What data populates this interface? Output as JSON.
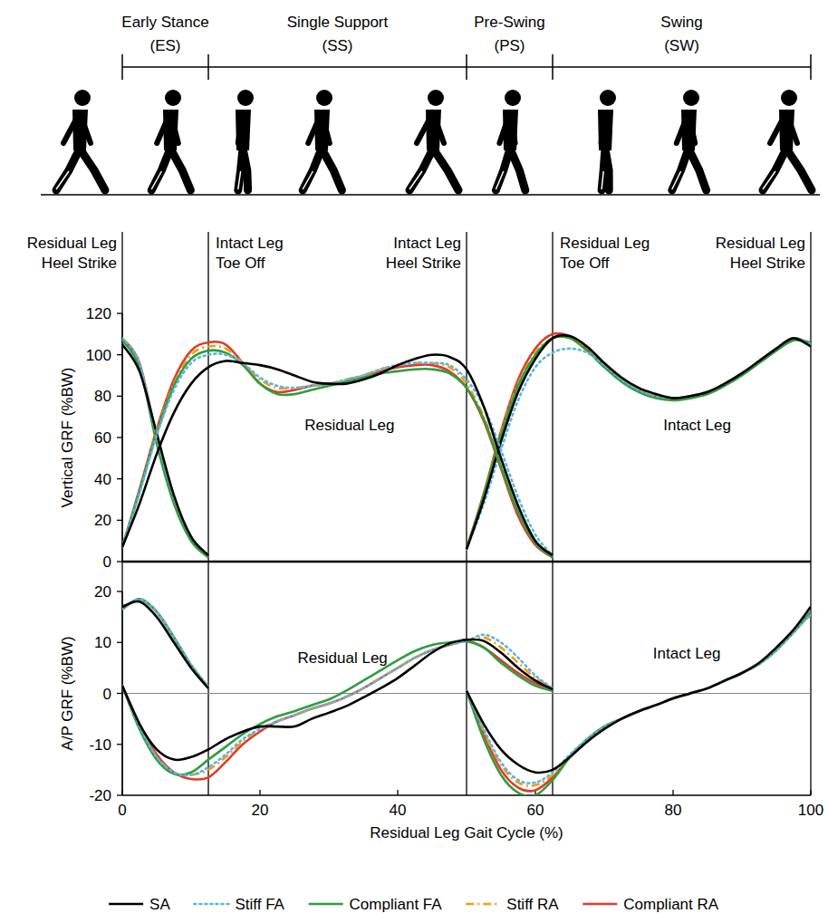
{
  "phases": [
    {
      "label": "Early Stance (ES)",
      "start": 0,
      "end": 12.5
    },
    {
      "label": "Single Support (SS)",
      "start": 12.5,
      "end": 50
    },
    {
      "label": "Pre-Swing (PS)",
      "start": 50,
      "end": 62.5
    },
    {
      "label": "Swing (SW)",
      "start": 62.5,
      "end": 100
    }
  ],
  "events": [
    {
      "x": 0,
      "label": "Residual Leg Heel Strike"
    },
    {
      "x": 12.5,
      "label": "Intact Leg Toe Off"
    },
    {
      "x": 50,
      "label": "Intact Leg Heel Strike"
    },
    {
      "x": 62.5,
      "label": "Residual Leg Toe Off"
    },
    {
      "x": 100,
      "label": "Residual Leg Heel Strike"
    }
  ],
  "chart_data": [
    {
      "type": "line",
      "y_label": "Vertical GRF (%BW)",
      "tick_labels": "y",
      "x": [
        0,
        2.5,
        5,
        7.5,
        10,
        12.5,
        15,
        17.5,
        20,
        22.5,
        25,
        27.5,
        30,
        32.5,
        35,
        37.5,
        40,
        42.5,
        45,
        47.5,
        50,
        52.5,
        55,
        57.5,
        60,
        62.5,
        65,
        67.5,
        70,
        72.5,
        75,
        77.5,
        80,
        82.5,
        85,
        87.5,
        90,
        92.5,
        95,
        97.5,
        100
      ],
      "xlim": [
        0,
        100
      ],
      "ylim": [
        0,
        120
      ],
      "yticks": [
        0,
        20,
        40,
        60,
        80,
        100,
        120
      ],
      "annotations": [
        {
          "text": "Residual Leg",
          "x": 33,
          "y": 66
        },
        {
          "text": "Intact Leg",
          "x": 83.5,
          "y": 66
        }
      ],
      "series": [
        {
          "name": "SA",
          "color": "#000000",
          "line_style": "solid",
          "values": [
            7,
            28,
            52,
            72,
            86,
            94,
            97,
            96,
            95,
            93,
            90,
            87,
            86,
            86,
            88,
            91,
            95,
            98,
            100,
            99,
            93,
            75,
            50,
            27,
            10,
            3,
            null,
            null,
            null,
            null,
            null,
            null,
            null,
            null,
            null,
            null,
            null,
            null,
            null,
            null,
            null
          ]
        },
        {
          "name": "Stiff FA",
          "color": "#5ab4e5",
          "line_style": "dotted",
          "values": [
            7,
            33,
            61,
            83,
            96,
            100,
            100,
            96,
            89,
            85,
            84,
            85,
            86,
            88,
            90,
            93,
            95,
            96,
            96,
            95,
            88,
            75,
            54,
            31,
            13,
            3,
            null,
            null,
            null,
            null,
            null,
            null,
            null,
            null,
            null,
            null,
            null,
            null,
            null,
            null,
            null
          ]
        },
        {
          "name": "Compliant FA",
          "color": "#2e9e3e",
          "line_style": "solid",
          "values": [
            7,
            34,
            62,
            85,
            98,
            102,
            101,
            95,
            86,
            81,
            81,
            83,
            85,
            87,
            89,
            91,
            92,
            93,
            93,
            91,
            84,
            69,
            46,
            24,
            9,
            2,
            null,
            null,
            null,
            null,
            null,
            null,
            null,
            null,
            null,
            null,
            null,
            null,
            null,
            null,
            null
          ]
        },
        {
          "name": "Stiff RA",
          "color": "#f39c12",
          "line_style": "dashdot",
          "values": [
            7,
            34,
            63,
            86,
            100,
            104,
            103,
            96,
            88,
            84,
            84,
            85,
            86,
            88,
            90,
            93,
            95,
            96,
            96,
            94,
            86,
            70,
            47,
            24,
            9,
            2,
            null,
            null,
            null,
            null,
            null,
            null,
            null,
            null,
            null,
            null,
            null,
            null,
            null,
            null,
            null
          ]
        },
        {
          "name": "Compliant RA",
          "color": "#e03a2f",
          "line_style": "solid",
          "values": [
            7,
            35,
            64,
            88,
            102,
            106,
            105,
            96,
            86,
            82,
            83,
            85,
            86,
            87,
            89,
            92,
            94,
            95,
            95,
            92,
            84,
            68,
            45,
            22,
            8,
            2,
            null,
            null,
            null,
            null,
            null,
            null,
            null,
            null,
            null,
            null,
            null,
            null,
            null,
            null,
            null
          ]
        },
        {
          "name": "SA",
          "color": "#000000",
          "line_style": "solid",
          "values": [
            105,
            92,
            62,
            32,
            12,
            3,
            null,
            null,
            null,
            null,
            null,
            null,
            null,
            null,
            null,
            null,
            null,
            null,
            null,
            null,
            6,
            30,
            58,
            82,
            98,
            108,
            109,
            104,
            96,
            89,
            84,
            81,
            79,
            80,
            82,
            86,
            91,
            97,
            103,
            108,
            104
          ]
        },
        {
          "name": "Stiff FA",
          "color": "#5ab4e5",
          "line_style": "dotted",
          "values": [
            108,
            96,
            60,
            31,
            12,
            3,
            null,
            null,
            null,
            null,
            null,
            null,
            null,
            null,
            null,
            null,
            null,
            null,
            null,
            null,
            6,
            28,
            54,
            78,
            94,
            101,
            103,
            101,
            95,
            88,
            83,
            80,
            79,
            80,
            82,
            86,
            91,
            97,
            103,
            108,
            105
          ]
        },
        {
          "name": "Compliant FA",
          "color": "#2e9e3e",
          "line_style": "solid",
          "values": [
            107,
            94,
            57,
            28,
            10,
            2,
            null,
            null,
            null,
            null,
            null,
            null,
            null,
            null,
            null,
            null,
            null,
            null,
            null,
            null,
            6,
            32,
            61,
            85,
            100,
            108,
            108,
            102,
            94,
            87,
            82,
            79,
            78,
            79,
            81,
            85,
            90,
            96,
            102,
            107,
            106
          ]
        },
        {
          "name": "Stiff RA",
          "color": "#f39c12",
          "line_style": "dashdot",
          "values": [
            108,
            95,
            59,
            30,
            12,
            3,
            null,
            null,
            null,
            null,
            null,
            null,
            null,
            null,
            null,
            null,
            null,
            null,
            null,
            null,
            6,
            32,
            62,
            86,
            101,
            108,
            109,
            103,
            95,
            88,
            83,
            80,
            79,
            80,
            82,
            86,
            91,
            97,
            103,
            108,
            105
          ]
        },
        {
          "name": "Compliant RA",
          "color": "#e03a2f",
          "line_style": "solid",
          "values": [
            108,
            96,
            60,
            30,
            11,
            3,
            null,
            null,
            null,
            null,
            null,
            null,
            null,
            null,
            null,
            null,
            null,
            null,
            null,
            null,
            6,
            33,
            63,
            88,
            103,
            110,
            109,
            103,
            95,
            88,
            83,
            80,
            79,
            80,
            82,
            86,
            91,
            97,
            103,
            108,
            105
          ]
        }
      ]
    },
    {
      "type": "line",
      "y_label": "A/P GRF (%BW)",
      "x_label": "Residual Leg Gait Cycle (%)",
      "legend": "bottom",
      "x": [
        0,
        2.5,
        5,
        7.5,
        10,
        12.5,
        15,
        17.5,
        20,
        22.5,
        25,
        27.5,
        30,
        32.5,
        35,
        37.5,
        40,
        42.5,
        45,
        47.5,
        50,
        52.5,
        55,
        57.5,
        60,
        62.5,
        65,
        67.5,
        70,
        72.5,
        75,
        77.5,
        80,
        82.5,
        85,
        87.5,
        90,
        92.5,
        95,
        97.5,
        100
      ],
      "xlim": [
        0,
        100
      ],
      "ylim": [
        -20,
        20
      ],
      "xticks": [
        0,
        20,
        40,
        60,
        80,
        100
      ],
      "yticks": [
        -20,
        -10,
        0,
        10,
        20
      ],
      "annotations": [
        {
          "text": "Residual Leg",
          "x": 32,
          "y": 7
        },
        {
          "text": "Intact Leg",
          "x": 82,
          "y": 8
        }
      ],
      "series": [
        {
          "name": "SA",
          "color": "#000000",
          "line_style": "solid",
          "values": [
            1.5,
            -6,
            -11,
            -13,
            -12.5,
            -11,
            -9,
            -7.5,
            -6.5,
            -6.5,
            -6.5,
            -5,
            -3.8,
            -2.5,
            -0.8,
            1,
            3,
            5.5,
            8,
            9.8,
            10.5,
            10.3,
            8,
            5,
            2.5,
            0.8,
            null,
            null,
            null,
            null,
            null,
            null,
            null,
            null,
            null,
            null,
            null,
            null,
            null,
            null,
            null
          ]
        },
        {
          "name": "Stiff FA",
          "color": "#5ab4e5",
          "line_style": "dotted",
          "values": [
            1.5,
            -6.5,
            -12.5,
            -15.5,
            -16,
            -14.5,
            -12,
            -9,
            -7,
            -5.5,
            -4.3,
            -3,
            -2,
            -0.7,
            1,
            3,
            5,
            7,
            8.5,
            9.5,
            10.3,
            11.5,
            10,
            7,
            3.5,
            1,
            null,
            null,
            null,
            null,
            null,
            null,
            null,
            null,
            null,
            null,
            null,
            null,
            null,
            null,
            null
          ]
        },
        {
          "name": "Compliant FA",
          "color": "#2e9e3e",
          "line_style": "solid",
          "values": [
            1.5,
            -7,
            -13,
            -15.8,
            -15.5,
            -13,
            -10.5,
            -8,
            -6,
            -4.5,
            -3.5,
            -2.3,
            -1.2,
            0.5,
            2.5,
            4.5,
            6.5,
            8.3,
            9.5,
            10,
            10.2,
            9,
            6,
            3.5,
            1.5,
            0.5,
            null,
            null,
            null,
            null,
            null,
            null,
            null,
            null,
            null,
            null,
            null,
            null,
            null,
            null,
            null
          ]
        },
        {
          "name": "Stiff RA",
          "color": "#f39c12",
          "line_style": "dashdot",
          "values": [
            1.5,
            -6.5,
            -12.5,
            -15.5,
            -16,
            -15,
            -12.5,
            -9.5,
            -7,
            -5.5,
            -4.3,
            -3,
            -2,
            -0.7,
            1,
            3,
            5,
            7,
            8.5,
            9.5,
            10.3,
            11,
            9,
            6,
            3,
            1,
            null,
            null,
            null,
            null,
            null,
            null,
            null,
            null,
            null,
            null,
            null,
            null,
            null,
            null,
            null
          ]
        },
        {
          "name": "Compliant RA",
          "color": "#e03a2f",
          "line_style": "solid",
          "values": [
            1.5,
            -6,
            -12,
            -15.5,
            -16.8,
            -16.5,
            -13.5,
            -10,
            -7.5,
            -5.5,
            -4.3,
            -3,
            -2,
            -0.7,
            1,
            3,
            5,
            7,
            8.5,
            9.5,
            10.3,
            9,
            6.5,
            4,
            2,
            0.8,
            null,
            null,
            null,
            null,
            null,
            null,
            null,
            null,
            null,
            null,
            null,
            null,
            null,
            null,
            null
          ]
        },
        {
          "name": "SA",
          "color": "#000000",
          "line_style": "solid",
          "values": [
            17,
            18,
            15,
            10,
            5,
            1,
            null,
            null,
            null,
            null,
            null,
            null,
            null,
            null,
            null,
            null,
            null,
            null,
            null,
            null,
            0.5,
            -6,
            -11,
            -14,
            -15.5,
            -15,
            -12.5,
            -9.5,
            -7,
            -5,
            -3.5,
            -2.3,
            -1,
            0,
            1,
            2.5,
            4,
            6,
            9,
            12.5,
            17
          ]
        },
        {
          "name": "Stiff FA",
          "color": "#5ab4e5",
          "line_style": "dotted",
          "values": [
            16.5,
            18.5,
            16,
            11,
            5.5,
            1.2,
            null,
            null,
            null,
            null,
            null,
            null,
            null,
            null,
            null,
            null,
            null,
            null,
            null,
            null,
            0.5,
            -7,
            -13.5,
            -17,
            -17.5,
            -15.5,
            -12,
            -9,
            -6.5,
            -5,
            -3.5,
            -2.3,
            -1,
            0,
            1,
            2.5,
            4,
            5.8,
            8.5,
            12,
            15.5
          ]
        },
        {
          "name": "Compliant FA",
          "color": "#2e9e3e",
          "line_style": "solid",
          "values": [
            16.5,
            18.5,
            16,
            11,
            5.5,
            1.2,
            null,
            null,
            null,
            null,
            null,
            null,
            null,
            null,
            null,
            null,
            null,
            null,
            null,
            null,
            0.5,
            -9,
            -16,
            -19.5,
            -20,
            -17,
            -12.5,
            -9,
            -6.5,
            -5,
            -3.5,
            -2.3,
            -1,
            0,
            1,
            2.5,
            4,
            5.8,
            8.5,
            12,
            16
          ]
        },
        {
          "name": "Stiff RA",
          "color": "#f39c12",
          "line_style": "dashdot",
          "values": [
            16.5,
            18.5,
            16,
            11,
            5.5,
            1.2,
            null,
            null,
            null,
            null,
            null,
            null,
            null,
            null,
            null,
            null,
            null,
            null,
            null,
            null,
            0.5,
            -7.5,
            -14,
            -17.5,
            -18,
            -16,
            -12.3,
            -9,
            -6.5,
            -5,
            -3.5,
            -2.3,
            -1,
            0,
            1,
            2.5,
            4,
            5.8,
            8.5,
            12,
            15.5
          ]
        },
        {
          "name": "Compliant RA",
          "color": "#e03a2f",
          "line_style": "solid",
          "values": [
            16.5,
            18.5,
            16,
            11,
            5.5,
            1.2,
            null,
            null,
            null,
            null,
            null,
            null,
            null,
            null,
            null,
            null,
            null,
            null,
            null,
            null,
            0.5,
            -8,
            -15,
            -18.5,
            -19,
            -16.5,
            -12.5,
            -9,
            -6.5,
            -5,
            -3.5,
            -2.3,
            -1,
            0,
            1,
            2.5,
            4,
            5.8,
            8.5,
            12,
            16
          ]
        }
      ]
    }
  ]
}
